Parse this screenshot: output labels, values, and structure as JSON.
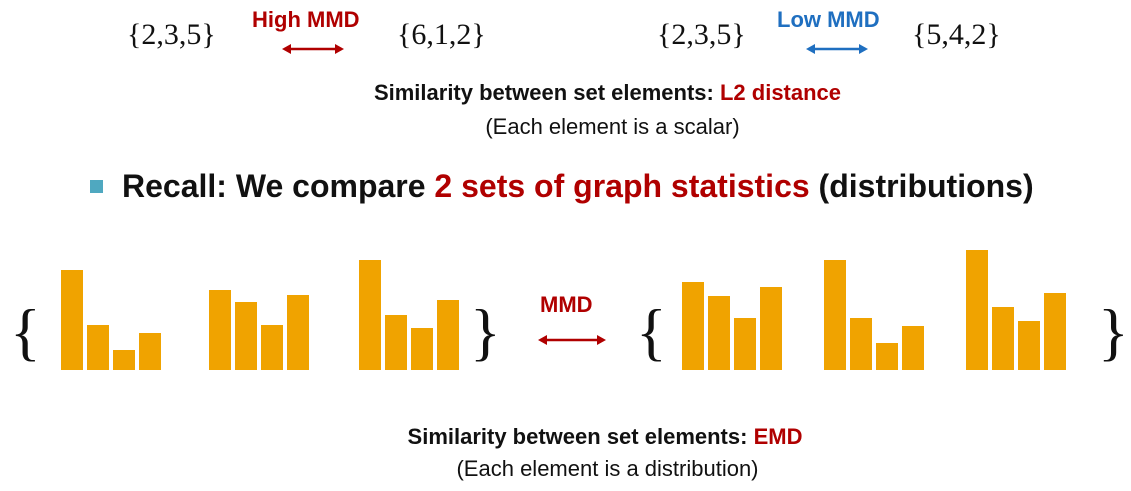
{
  "colors": {
    "red": "#b00000",
    "blue": "#1f6fc0",
    "bar": "#f0a300",
    "bullet": "#4fa8c0"
  },
  "example_high": {
    "left_set": "{2,3,5}",
    "label": "High MMD",
    "right_set": "{6,1,2}"
  },
  "example_low": {
    "left_set": "{2,3,5}",
    "label": "Low MMD",
    "right_set": "{5,4,2}"
  },
  "similarity_top": {
    "prefix": "Similarity between set elements: ",
    "metric": "L2 distance",
    "note": "(Each element is a scalar)"
  },
  "recall": {
    "prefix": "Recall: We compare ",
    "highlight": "2 sets of graph statistics",
    "suffix": " (distributions)"
  },
  "distributions": {
    "open_brace": "{",
    "close_brace": "}",
    "left_set": [
      [
        100,
        45,
        20,
        37
      ],
      [
        80,
        68,
        45,
        75
      ],
      [
        110,
        55,
        42,
        70
      ]
    ],
    "right_set": [
      [
        88,
        74,
        52,
        83
      ],
      [
        110,
        52,
        27,
        44
      ],
      [
        120,
        63,
        49,
        77
      ]
    ],
    "mmd_label": "MMD"
  },
  "similarity_bottom": {
    "prefix": "Similarity between set elements: ",
    "metric": "EMD",
    "note": "(Each element is a distribution)"
  }
}
